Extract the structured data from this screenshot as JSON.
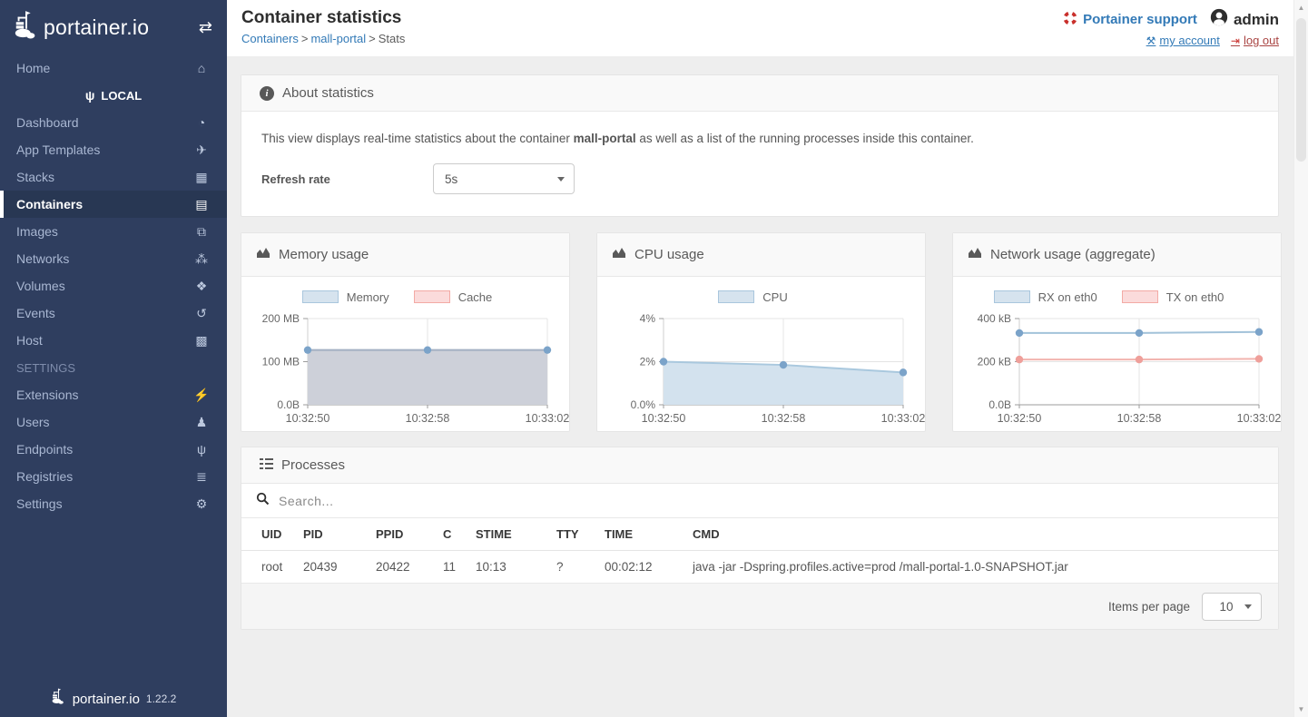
{
  "sidebar": {
    "logo_text": "portainer.io",
    "version": "1.22.2",
    "toggle_icon_glyph": "⇄",
    "home": {
      "label": "Home",
      "glyph": "⌂"
    },
    "local_section": {
      "label": "LOCAL",
      "glyph": "ψ"
    },
    "local_items": [
      {
        "name": "dashboard",
        "label": "Dashboard",
        "glyph": "◔",
        "active": false
      },
      {
        "name": "app-templates",
        "label": "App Templates",
        "glyph": "✈",
        "active": false
      },
      {
        "name": "stacks",
        "label": "Stacks",
        "glyph": "▦",
        "active": false
      },
      {
        "name": "containers",
        "label": "Containers",
        "glyph": "▤",
        "active": true
      },
      {
        "name": "images",
        "label": "Images",
        "glyph": "⧉",
        "active": false
      },
      {
        "name": "networks",
        "label": "Networks",
        "glyph": "⁂",
        "active": false
      },
      {
        "name": "volumes",
        "label": "Volumes",
        "glyph": "❖",
        "active": false
      },
      {
        "name": "events",
        "label": "Events",
        "glyph": "↺",
        "active": false
      },
      {
        "name": "host",
        "label": "Host",
        "glyph": "▩",
        "active": false
      }
    ],
    "settings_section": {
      "label": "SETTINGS"
    },
    "settings_items": [
      {
        "name": "extensions",
        "label": "Extensions",
        "glyph": "⚡",
        "active": false
      },
      {
        "name": "users",
        "label": "Users",
        "glyph": "♟",
        "active": false
      },
      {
        "name": "endpoints",
        "label": "Endpoints",
        "glyph": "ψ",
        "active": false
      },
      {
        "name": "registries",
        "label": "Registries",
        "glyph": "≣",
        "active": false
      },
      {
        "name": "settings",
        "label": "Settings",
        "glyph": "⚙",
        "active": false
      }
    ]
  },
  "header": {
    "title": "Container statistics",
    "breadcrumb": [
      {
        "label": "Containers"
      },
      {
        "label": "mall-portal"
      },
      {
        "label": "Stats"
      }
    ],
    "separator": ">",
    "support_label": "Portainer support",
    "username": "admin",
    "my_account_label": "my account",
    "my_account_glyph": "⚒",
    "log_out_label": "log out",
    "log_out_glyph": "⇥"
  },
  "about": {
    "title": "About statistics",
    "description_prefix": "This view displays real-time statistics about the container ",
    "description_bold": "mall-portal",
    "description_suffix": " as well as a list of the running processes inside this container.",
    "refresh_label": "Refresh rate",
    "refresh_value": "5s"
  },
  "chart_colors": {
    "blue_fill": "#d6e3ee",
    "blue_border": "#a9c6dd",
    "pink_fill": "#fbdbdb",
    "pink_border": "#f3aaa5"
  },
  "charts": [
    {
      "title": "Memory usage",
      "type": "area",
      "x_labels": [
        "10:32:50",
        "10:32:58",
        "10:33:02"
      ],
      "y_ticks": [
        "200 MB",
        "100 MB",
        "0.0B"
      ],
      "y_max": 200,
      "series": [
        {
          "name": "Memory",
          "values": [
            127,
            127,
            127
          ],
          "line_color": "#a3afc2",
          "fill_color": "#cdd0d9",
          "dot_color": "#7ba3c9",
          "filled": true,
          "show": true
        },
        {
          "name": "Cache",
          "values": [
            0,
            0,
            0
          ],
          "line_color": "#f3aaa5",
          "fill_color": "#fbdbdb",
          "dot_color": "#ef9f9a",
          "filled": false,
          "show": false
        }
      ],
      "legend": [
        {
          "label": "Memory",
          "fill": "#d6e3ee",
          "border": "#a9c6dd"
        },
        {
          "label": "Cache",
          "fill": "#fbdbdb",
          "border": "#f3aaa5"
        }
      ]
    },
    {
      "title": "CPU usage",
      "type": "area",
      "x_labels": [
        "10:32:50",
        "10:32:58",
        "10:33:02"
      ],
      "y_ticks": [
        "4%",
        "2%",
        "0.0%"
      ],
      "y_max": 4,
      "series": [
        {
          "name": "CPU",
          "values": [
            2.0,
            1.85,
            1.5
          ],
          "line_color": "#a9c8de",
          "fill_color": "#d3e2ee",
          "dot_color": "#7ba3c9",
          "filled": true,
          "show": true
        }
      ],
      "legend": [
        {
          "label": "CPU",
          "fill": "#d6e3ee",
          "border": "#a9c6dd"
        }
      ]
    },
    {
      "title": "Network usage (aggregate)",
      "type": "line",
      "x_labels": [
        "10:32:50",
        "10:32:58",
        "10:33:02"
      ],
      "y_ticks": [
        "400 kB",
        "200 kB",
        "0.0B"
      ],
      "y_max": 400,
      "series": [
        {
          "name": "RX on eth0",
          "values": [
            333,
            333,
            338
          ],
          "line_color": "#a2c2d9",
          "fill_color": "none",
          "dot_color": "#7ba3c9",
          "filled": false,
          "show": true
        },
        {
          "name": "TX on eth0",
          "values": [
            210,
            210,
            213
          ],
          "line_color": "#f2b4af",
          "fill_color": "none",
          "dot_color": "#ef9f9a",
          "filled": false,
          "show": true
        }
      ],
      "legend": [
        {
          "label": "RX on eth0",
          "fill": "#d6e3ee",
          "border": "#a9c6dd"
        },
        {
          "label": "TX on eth0",
          "fill": "#fbdbdb",
          "border": "#f3aaa5"
        }
      ]
    }
  ],
  "processes": {
    "title": "Processes",
    "search_placeholder": "Search...",
    "columns": [
      "UID",
      "PID",
      "PPID",
      "C",
      "STIME",
      "TTY",
      "TIME",
      "CMD"
    ],
    "rows": [
      [
        "root",
        "20439",
        "20422",
        "11",
        "10:13",
        "?",
        "00:02:12",
        "java -jar -Dspring.profiles.active=prod /mall-portal-1.0-SNAPSHOT.jar"
      ]
    ],
    "items_per_page_label": "Items per page",
    "items_per_page_value": "10"
  }
}
